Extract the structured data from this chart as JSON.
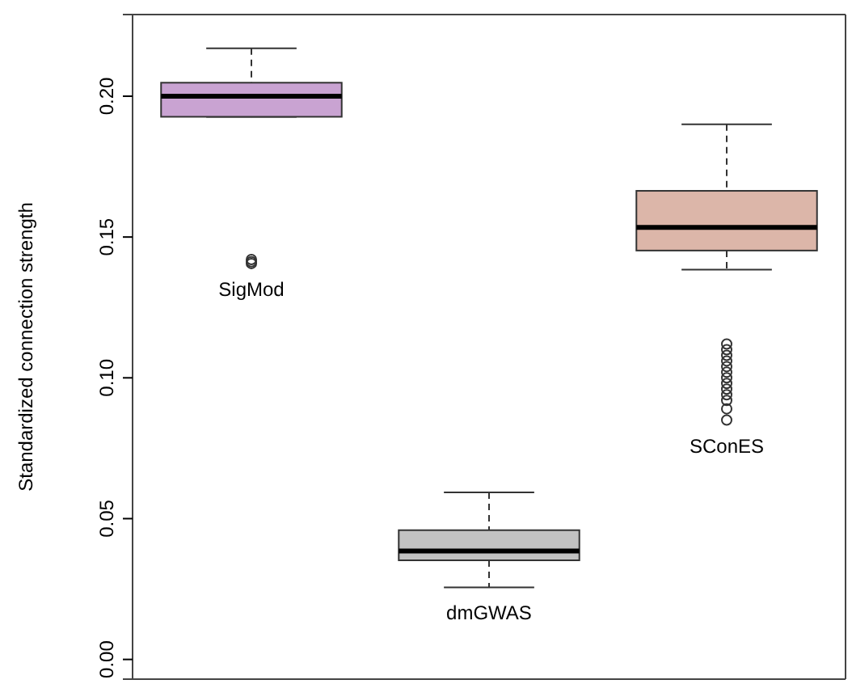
{
  "chart_data": {
    "type": "box",
    "ylabel": "Standardized connection strength",
    "categories": [
      null,
      null,
      null
    ],
    "annotations": [
      "SigMod",
      "dmGWAS",
      "SConES"
    ],
    "colors": [
      "#c9a3d2",
      "#c2c2c2",
      "#dcb6a9"
    ],
    "boxes": [
      {
        "low": 0.1927,
        "q1": 0.1927,
        "median": 0.2,
        "q3": 0.2048,
        "high": 0.217,
        "outliers": [
          0.1406,
          0.1412,
          0.142
        ]
      },
      {
        "low": 0.0256,
        "q1": 0.0352,
        "median": 0.0385,
        "q3": 0.0459,
        "high": 0.0593
      },
      {
        "low": 0.1384,
        "q1": 0.1452,
        "median": 0.1534,
        "q3": 0.1664,
        "high": 0.19,
        "outliers": [
          0.112,
          0.11,
          0.108,
          0.106,
          0.104,
          0.102,
          0.1,
          0.098,
          0.096,
          0.094,
          0.092,
          0.089,
          0.085
        ]
      }
    ],
    "ylim": [
      -0.007,
      0.229
    ],
    "yticks": [
      {
        "value": 0,
        "label": "0.00"
      },
      {
        "value": 0.05,
        "label": "0.05"
      },
      {
        "value": 0.1,
        "label": "0.10"
      },
      {
        "value": 0.15,
        "label": "0.15"
      },
      {
        "value": 0.2,
        "label": "0.20"
      }
    ]
  }
}
